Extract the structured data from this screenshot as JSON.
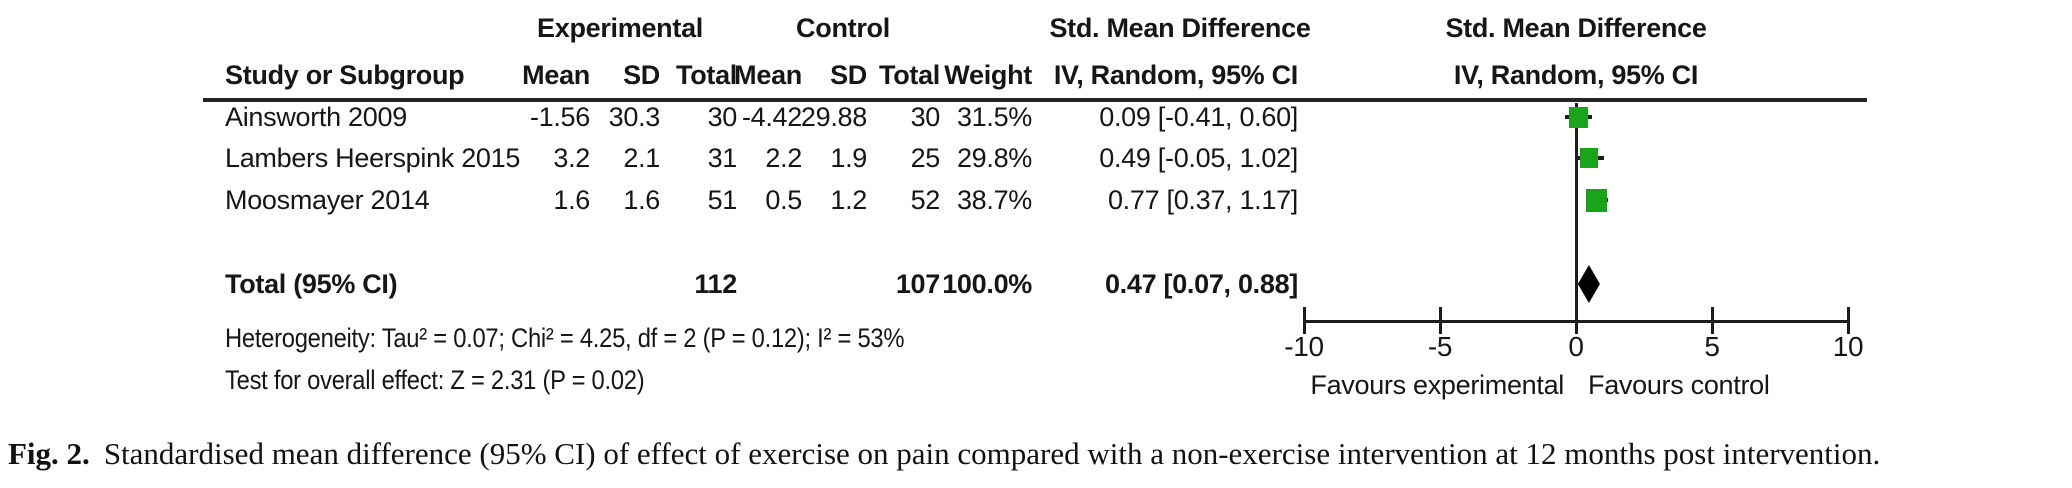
{
  "figure": {
    "group_headers": {
      "experimental": "Experimental",
      "control": "Control",
      "smd_table": "Std. Mean Difference",
      "smd_plot": "Std. Mean Difference"
    },
    "col_headers": {
      "study": "Study or Subgroup",
      "mean_e": "Mean",
      "sd_e": "SD",
      "total_e": "Total",
      "mean_c": "Mean",
      "sd_c": "SD",
      "total_c": "Total",
      "weight": "Weight",
      "ci": "IV, Random, 95% CI",
      "ci_plot": "IV, Random, 95% CI"
    },
    "rows": [
      {
        "study": "Ainsworth 2009",
        "mean_e": "-1.56",
        "sd_e": "30.3",
        "total_e": "30",
        "mean_c": "-4.42",
        "sd_c": "29.88",
        "total_c": "30",
        "weight": "31.5%",
        "ci": "0.09 [-0.41, 0.60]"
      },
      {
        "study": "Lambers Heerspink 2015",
        "mean_e": "3.2",
        "sd_e": "2.1",
        "total_e": "31",
        "mean_c": "2.2",
        "sd_c": "1.9",
        "total_c": "25",
        "weight": "29.8%",
        "ci": "0.49 [-0.05, 1.02]"
      },
      {
        "study": "Moosmayer 2014",
        "mean_e": "1.6",
        "sd_e": "1.6",
        "total_e": "51",
        "mean_c": "0.5",
        "sd_c": "1.2",
        "total_c": "52",
        "weight": "38.7%",
        "ci": "0.77 [0.37, 1.17]"
      }
    ],
    "total_row": {
      "label": "Total (95% CI)",
      "total_e": "112",
      "total_c": "107",
      "weight": "100.0%",
      "ci": "0.47 [0.07, 0.88]"
    },
    "heterogeneity": "Heterogeneity: Tau² = 0.07; Chi² = 4.25, df = 2 (P = 0.12); I² = 53%",
    "overall_effect": "Test for overall effect: Z = 2.31 (P = 0.02)"
  },
  "chart_data": {
    "type": "forest",
    "title": "Std. Mean Difference",
    "effect_model": "IV, Random, 95% CI",
    "axis": {
      "min": -10,
      "max": 10,
      "ticks": [
        -10,
        -5,
        0,
        5,
        10
      ],
      "left_label": "Favours experimental",
      "right_label": "Favours control"
    },
    "studies": [
      {
        "name": "Ainsworth 2009",
        "smd": 0.09,
        "ci_low": -0.41,
        "ci_high": 0.6,
        "weight_pct": 31.5
      },
      {
        "name": "Lambers Heerspink 2015",
        "smd": 0.49,
        "ci_low": -0.05,
        "ci_high": 1.02,
        "weight_pct": 29.8
      },
      {
        "name": "Moosmayer 2014",
        "smd": 0.77,
        "ci_low": 0.37,
        "ci_high": 1.17,
        "weight_pct": 38.7
      }
    ],
    "total": {
      "smd": 0.47,
      "ci_low": 0.07,
      "ci_high": 0.88
    },
    "colors": {
      "marker": "#1aa41a",
      "diamond": "#000000",
      "line": "#1c1c1c"
    }
  },
  "caption": {
    "label": "Fig. 2.",
    "text": "Standardised mean difference (95% CI) of effect of exercise on pain compared with a non-exercise intervention at 12 months post intervention."
  }
}
